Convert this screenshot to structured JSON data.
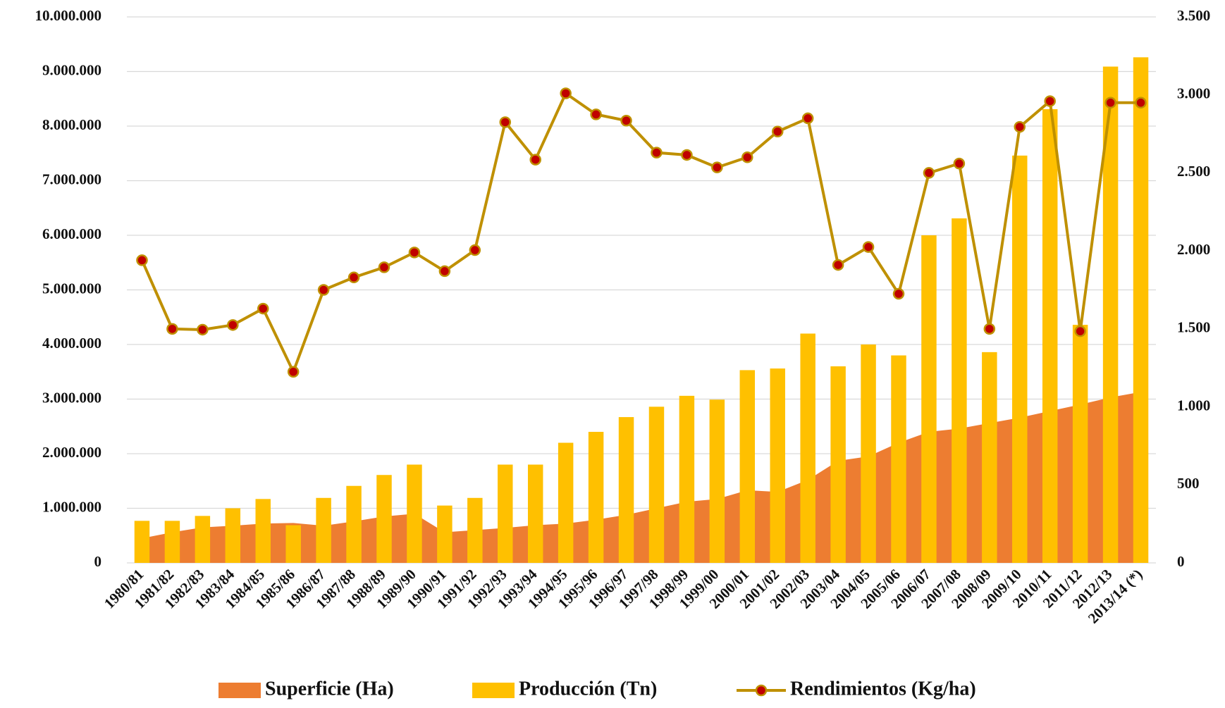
{
  "chart_data": {
    "type": "combo",
    "categories": [
      "1980/81",
      "1981/82",
      "1982/83",
      "1983/84",
      "1984/85",
      "1985/86",
      "1986/87",
      "1987/88",
      "1988/89",
      "1989/90",
      "1990/91",
      "1991/92",
      "1992/93",
      "1993/94",
      "1994/95",
      "1995/96",
      "1996/97",
      "1997/98",
      "1998/99",
      "1999/00",
      "2000/01",
      "2001/02",
      "2002/03",
      "2003/04",
      "2004/05",
      "2005/06",
      "2006/07",
      "2007/08",
      "2008/09",
      "2009/10",
      "2010/11",
      "2011/12",
      "2012/13",
      "2013/14 (*)"
    ],
    "series": [
      {
        "name": "Superficie (Ha)",
        "type": "area",
        "color": "#ed7d31",
        "values": [
          450000,
          560000,
          650000,
          680000,
          720000,
          730000,
          680000,
          760000,
          850000,
          900000,
          560000,
          600000,
          640000,
          690000,
          720000,
          790000,
          880000,
          1000000,
          1120000,
          1170000,
          1330000,
          1300000,
          1520000,
          1870000,
          1950000,
          2200000,
          2400000,
          2460000,
          2560000,
          2660000,
          2780000,
          2900000,
          3030000,
          3130000
        ]
      },
      {
        "name": "Producción (Tn)",
        "type": "bar",
        "color": "#ffc000",
        "values": [
          770000,
          770000,
          860000,
          1000000,
          1170000,
          690000,
          1190000,
          1410000,
          1610000,
          1800000,
          1050000,
          1190000,
          1800000,
          1800000,
          2200000,
          2400000,
          2670000,
          2860000,
          3060000,
          2990000,
          3530000,
          3560000,
          4200000,
          3600000,
          4000000,
          3800000,
          6000000,
          6310000,
          3860000,
          7460000,
          8310000,
          4360000,
          9090000,
          9260000
        ]
      },
      {
        "name": "Rendimientos (Kg/ha)",
        "type": "line",
        "axis": "y2",
        "color": "#bf9000",
        "marker_color": "#c00000",
        "values": [
          1940,
          1500,
          1495,
          1525,
          1630,
          1225,
          1750,
          1830,
          1895,
          1990,
          1870,
          2005,
          2825,
          2585,
          3010,
          2875,
          2835,
          2630,
          2615,
          2535,
          2600,
          2765,
          2850,
          1910,
          2025,
          1725,
          2500,
          2560,
          1500,
          2795,
          2960,
          1485,
          2950,
          2950
        ]
      }
    ],
    "ylim": [
      0,
      10000000
    ],
    "yticks": [
      0,
      {
        "value": 1000000,
        "label": "1.000.000"
      },
      {
        "value": 2000000,
        "label": "2.000.000"
      },
      {
        "value": 3000000,
        "label": "3.000.000"
      },
      {
        "value": 4000000,
        "label": "4.000.000"
      },
      {
        "value": 5000000,
        "label": "5.000.000"
      },
      {
        "value": 6000000,
        "label": "6.000.000"
      },
      {
        "value": 7000000,
        "label": "7.000.000"
      },
      {
        "value": 8000000,
        "label": "8.000.000"
      },
      {
        "value": 9000000,
        "label": "9.000.000"
      },
      {
        "value": 10000000,
        "label": "10.000.000"
      }
    ],
    "y2lim": [
      0,
      3500
    ],
    "y2ticks": [
      0,
      500,
      {
        "value": 1000,
        "label": "1.000"
      },
      {
        "value": 1500,
        "label": "1.500"
      },
      {
        "value": 2000,
        "label": "2.000"
      },
      {
        "value": 2500,
        "label": "2.500"
      },
      {
        "value": 3000,
        "label": "3.000"
      },
      {
        "value": 3500,
        "label": "3.500"
      }
    ],
    "grid": true,
    "legend": "bottom"
  }
}
